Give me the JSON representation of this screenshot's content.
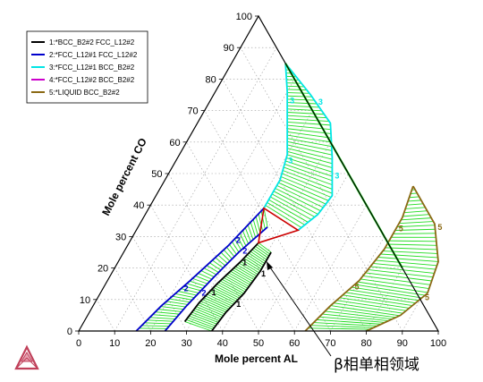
{
  "chart_data": {
    "type": "ternary",
    "xlabel": "Mole percent AL",
    "ylabel": "Mole percent CO",
    "ticks": [
      "0",
      "10",
      "20",
      "30",
      "40",
      "50",
      "60",
      "70",
      "80",
      "90",
      "100"
    ],
    "annotation": "β相单相领域",
    "grid": true,
    "legend_position": "top-left",
    "series": [
      {
        "name": "1:*BCC_B2#2 FCC_L12#2",
        "color": "#000000",
        "label": "1",
        "line_a": [
          [
            28,
            3
          ],
          [
            29,
            9
          ],
          [
            31,
            15
          ],
          [
            34,
            22
          ],
          [
            36,
            28
          ]
        ],
        "line_b": [
          [
            37,
            0
          ],
          [
            38,
            6
          ],
          [
            40,
            12
          ],
          [
            41,
            19
          ],
          [
            41,
            25
          ]
        ]
      },
      {
        "name": "2:*FCC_L12#1 FCC_L12#2",
        "color": "#0000cc",
        "label": "2",
        "line_a": [
          [
            16,
            0
          ],
          [
            19,
            8
          ],
          [
            23,
            16
          ],
          [
            28,
            27
          ],
          [
            32,
            39
          ]
        ],
        "line_b": [
          [
            24,
            0
          ],
          [
            26,
            8
          ],
          [
            29,
            17
          ],
          [
            32,
            25
          ],
          [
            36,
            33
          ]
        ]
      },
      {
        "name": "3:*FCC_L12#1 BCC_B2#2",
        "color": "#00e5e5",
        "label": "3",
        "line_a": [
          [
            32,
            39
          ],
          [
            32,
            48
          ],
          [
            30,
            56
          ],
          [
            25,
            66
          ],
          [
            20,
            76
          ],
          [
            15,
            85
          ]
        ],
        "line_b": [
          [
            45,
            32
          ],
          [
            48,
            37
          ],
          [
            49,
            43
          ],
          [
            43,
            55
          ],
          [
            37,
            66
          ],
          [
            27,
            75
          ],
          [
            15,
            85
          ]
        ]
      },
      {
        "name": "4:*FCC_L12#2 BCC_B2#2",
        "color": "#cc00cc",
        "label": "4",
        "line_a": [],
        "line_b": []
      },
      {
        "name": "5:*LIQUID BCC_B2#2",
        "color": "#8b6914",
        "label": "5",
        "line_a": [
          [
            63,
            0
          ],
          [
            66,
            8
          ],
          [
            70,
            16
          ],
          [
            72,
            26
          ],
          [
            72,
            36
          ],
          [
            70,
            46
          ]
        ],
        "line_b": [
          [
            80,
            0
          ],
          [
            87,
            5
          ],
          [
            91,
            12
          ],
          [
            89,
            22
          ],
          [
            82,
            34
          ],
          [
            70,
            46
          ]
        ]
      }
    ],
    "three_phase_triangles": [
      {
        "color": "#cc0000",
        "vertices": [
          [
            32,
            39
          ],
          [
            36,
            28
          ],
          [
            45,
            32
          ]
        ]
      }
    ],
    "green_boundary": [
      [
        15,
        85
      ],
      [
        5,
        92
      ],
      [
        27,
        73
      ],
      [
        45,
        50
      ],
      [
        63,
        30
      ],
      [
        70,
        46
      ]
    ]
  }
}
